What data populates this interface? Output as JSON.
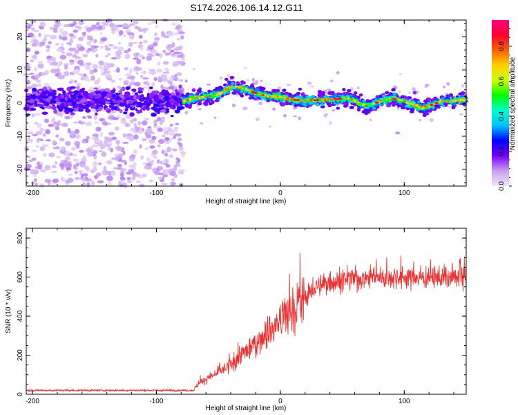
{
  "figure": {
    "title": "S174.2026.106.14.12.G11"
  },
  "chart_data": [
    {
      "type": "heatmap",
      "xlabel": "Height of straight line (km)",
      "ylabel": "Frequency (Hz)",
      "xlim": [
        -205,
        150
      ],
      "ylim": [
        -25,
        25
      ],
      "xticks": [
        -200,
        -100,
        0,
        100
      ],
      "yticks": [
        -20,
        -10,
        0,
        10,
        20
      ],
      "colorbar": {
        "label": "Normalized spectral amplitude",
        "range": [
          0,
          0.95
        ],
        "ticks": [
          0.0,
          0.2,
          0.4,
          0.6,
          0.8
        ],
        "colors": [
          "#f0e6f8",
          "#c8a0f0",
          "#7a00ff",
          "#0000ff",
          "#00c0ff",
          "#00ffcc",
          "#00ff00",
          "#c8ff00",
          "#ffd000",
          "#ff6000",
          "#ff0030",
          "#ff0080"
        ]
      },
      "ridge_center_hz": [
        {
          "x": -200,
          "y": 1.5
        },
        {
          "x": -170,
          "y": 0.5
        },
        {
          "x": -140,
          "y": 1.0
        },
        {
          "x": -100,
          "y": 0.5
        },
        {
          "x": -78,
          "y": 0.5
        },
        {
          "x": -70,
          "y": 1.5
        },
        {
          "x": -50,
          "y": 2.5
        },
        {
          "x": -40,
          "y": 5.0
        },
        {
          "x": -30,
          "y": 4.5
        },
        {
          "x": -20,
          "y": 3.0
        },
        {
          "x": -10,
          "y": 2.0
        },
        {
          "x": 0,
          "y": 2.0
        },
        {
          "x": 10,
          "y": 1.0
        },
        {
          "x": 20,
          "y": 0.8
        },
        {
          "x": 40,
          "y": 1.0
        },
        {
          "x": 55,
          "y": 1.5
        },
        {
          "x": 70,
          "y": -1.0
        },
        {
          "x": 80,
          "y": 0.5
        },
        {
          "x": 90,
          "y": 1.5
        },
        {
          "x": 100,
          "y": 0.5
        },
        {
          "x": 115,
          "y": -1.5
        },
        {
          "x": 130,
          "y": 0.5
        },
        {
          "x": 150,
          "y": 1.0
        }
      ],
      "noise_region_x": [
        -205,
        -78
      ]
    },
    {
      "type": "line",
      "xlabel": "Height of straight line (km)",
      "ylabel": "SNR (10 * v/v)",
      "xlim": [
        -205,
        150
      ],
      "ylim": [
        0,
        850
      ],
      "xticks": [
        -200,
        -100,
        0,
        100
      ],
      "yticks": [
        0,
        200,
        400,
        600,
        800
      ],
      "series": [
        {
          "name": "SNR",
          "color": "#f03030",
          "trend": [
            {
              "x": -205,
              "y": 20
            },
            {
              "x": -70,
              "y": 20
            },
            {
              "x": -65,
              "y": 60
            },
            {
              "x": -50,
              "y": 110
            },
            {
              "x": -40,
              "y": 150
            },
            {
              "x": -30,
              "y": 210
            },
            {
              "x": -20,
              "y": 260
            },
            {
              "x": -10,
              "y": 320
            },
            {
              "x": 0,
              "y": 370
            },
            {
              "x": 10,
              "y": 430
            },
            {
              "x": 20,
              "y": 500
            },
            {
              "x": 30,
              "y": 550
            },
            {
              "x": 40,
              "y": 575
            },
            {
              "x": 60,
              "y": 590
            },
            {
              "x": 80,
              "y": 600
            },
            {
              "x": 100,
              "y": 600
            },
            {
              "x": 130,
              "y": 595
            },
            {
              "x": 150,
              "y": 600
            }
          ]
        }
      ]
    }
  ]
}
